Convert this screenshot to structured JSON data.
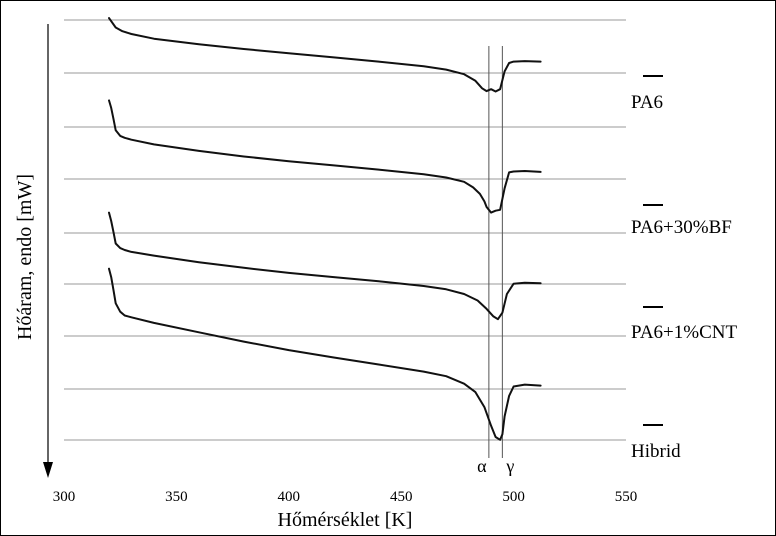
{
  "chart_data": {
    "type": "line",
    "title": "",
    "xlabel": "Hőmérséklet [K]",
    "ylabel": "Hőáram, endo [mW]",
    "xlim": [
      300,
      550
    ],
    "xticks": [
      300,
      350,
      400,
      450,
      500,
      550
    ],
    "grid": true,
    "y_axis_arrow": "down",
    "series": [
      {
        "name": "PA6",
        "x": [
          320,
          323,
          326,
          330,
          340,
          360,
          380,
          400,
          420,
          440,
          460,
          470,
          478,
          483,
          486,
          488,
          490,
          492,
          494,
          496,
          498,
          500,
          505,
          512
        ],
        "y": [
          -0.2,
          0.8,
          1.2,
          1.5,
          2.0,
          2.6,
          3.1,
          3.55,
          4.0,
          4.45,
          4.95,
          5.3,
          5.8,
          6.5,
          7.3,
          7.6,
          7.4,
          7.65,
          7.4,
          5.5,
          4.6,
          4.45,
          4.4,
          4.45
        ]
      },
      {
        "name": "PA6+30%BF",
        "x": [
          320,
          321,
          322,
          323,
          325,
          327,
          330,
          340,
          360,
          380,
          400,
          420,
          440,
          460,
          470,
          478,
          482,
          485,
          487,
          488,
          490,
          492,
          494,
          496,
          498,
          500,
          505,
          512
        ],
        "y": [
          8.6,
          9.4,
          10.6,
          11.8,
          12.4,
          12.6,
          12.8,
          13.3,
          14.0,
          14.6,
          15.1,
          15.55,
          16.0,
          16.5,
          16.85,
          17.3,
          17.9,
          18.6,
          19.4,
          20.0,
          20.6,
          20.4,
          20.3,
          18.0,
          16.3,
          16.2,
          16.15,
          16.25
        ]
      },
      {
        "name": "PA6+1%CNT",
        "x": [
          320,
          321,
          322,
          323,
          325,
          327,
          330,
          340,
          360,
          380,
          400,
          420,
          440,
          460,
          470,
          478,
          484,
          488,
          491,
          493,
          495,
          497,
          500,
          505,
          512
        ],
        "y": [
          20.6,
          21.5,
          22.7,
          23.9,
          24.4,
          24.6,
          24.8,
          25.2,
          25.9,
          26.5,
          27.05,
          27.5,
          27.95,
          28.45,
          28.8,
          29.3,
          30.0,
          30.9,
          31.7,
          32.0,
          31.3,
          29.3,
          28.2,
          28.1,
          28.15
        ]
      },
      {
        "name": "Hibrid",
        "x": [
          320,
          321,
          322,
          323,
          325,
          327,
          330,
          340,
          360,
          380,
          400,
          420,
          440,
          460,
          470,
          478,
          483,
          487,
          490,
          492,
          494,
          495,
          496,
          498,
          500,
          505,
          512
        ],
        "y": [
          26.6,
          27.5,
          28.9,
          30.3,
          31.2,
          31.6,
          31.8,
          32.4,
          33.4,
          34.4,
          35.3,
          36.1,
          36.85,
          37.6,
          38.1,
          38.9,
          39.8,
          41.4,
          43.4,
          44.6,
          44.9,
          44.3,
          42.4,
          40.2,
          39.2,
          39.0,
          39.1
        ]
      }
    ],
    "vlines": [
      {
        "x": 489,
        "label": "α"
      },
      {
        "x": 495,
        "label": "γ"
      }
    ]
  }
}
